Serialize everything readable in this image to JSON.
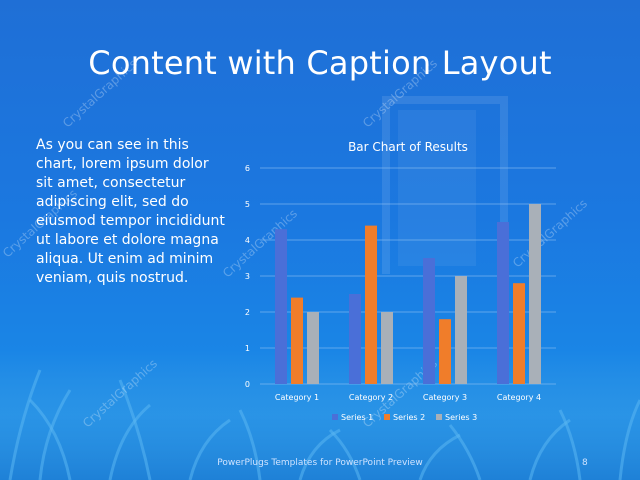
{
  "slide": {
    "title": "Content with Caption Layout",
    "caption": "As you can see in this chart, lorem ipsum dolor sit amet, consectetur adipiscing elit, sed do eiusmod tempor incididunt ut labore et dolore magna aliqua. Ut enim ad minim veniam, quis nostrud.",
    "footer": "PowerPlugs Templates for PowerPoint Preview",
    "page_number": "8",
    "watermark": "CrystalGraphics"
  },
  "colors": {
    "series1": "#4a6fd8",
    "series2": "#f07d2a",
    "series3": "#a9b0b8",
    "text": "#ffffff",
    "grid": "#8fc0f2"
  },
  "chart_data": {
    "type": "bar",
    "title": "Bar Chart of Results",
    "categories": [
      "Category 1",
      "Category 2",
      "Category 3",
      "Category 4"
    ],
    "series": [
      {
        "name": "Series 1",
        "values": [
          4.3,
          2.5,
          3.5,
          4.5
        ]
      },
      {
        "name": "Series 2",
        "values": [
          2.4,
          4.4,
          1.8,
          2.8
        ]
      },
      {
        "name": "Series 3",
        "values": [
          2,
          2,
          3,
          5
        ]
      }
    ],
    "ylim": [
      0,
      6
    ],
    "yticks": [
      "0",
      "1",
      "2",
      "3",
      "4",
      "5",
      "6"
    ],
    "grid": true,
    "legend": "bottom"
  }
}
